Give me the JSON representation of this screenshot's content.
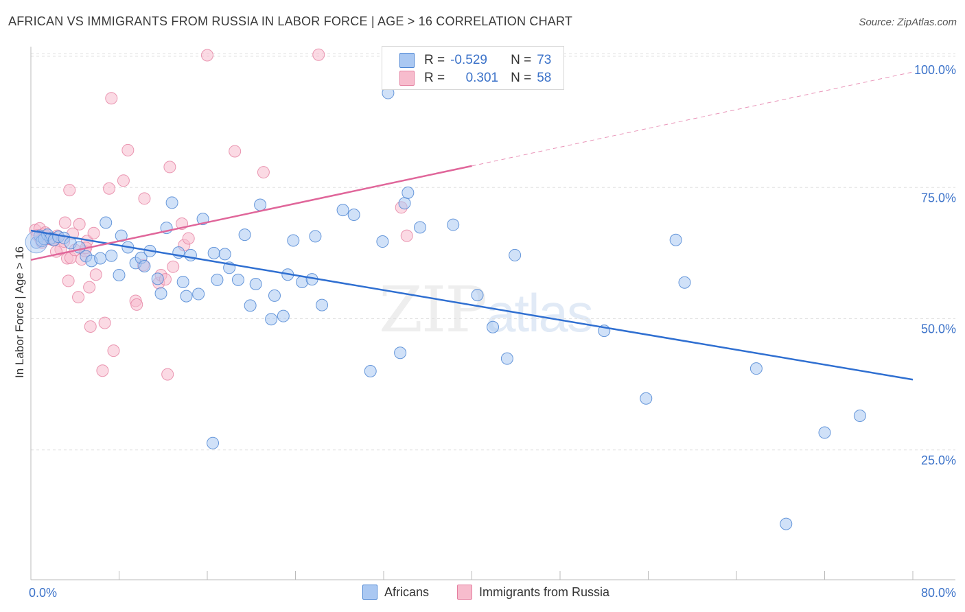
{
  "title": "AFRICAN VS IMMIGRANTS FROM RUSSIA IN LABOR FORCE | AGE > 16 CORRELATION CHART",
  "source": "Source: ZipAtlas.com",
  "watermark": {
    "main": "ZIP",
    "sub": "atlas"
  },
  "colors": {
    "blue_fill": "#aac8f2",
    "blue_stroke": "#4d86d4",
    "blue_line": "#2f6fd1",
    "pink_fill": "#f7bccd",
    "pink_stroke": "#e57fa0",
    "pink_line": "#e0669a",
    "axis_text": "#3b72c9",
    "grid": "#e0e0e0"
  },
  "legend_top": {
    "rows": [
      {
        "r_label": "R =",
        "r_value": "-0.529",
        "n_label": "N =",
        "n_value": "73"
      },
      {
        "r_label": "R =",
        "r_value": "0.301",
        "n_label": "N =",
        "n_value": "58"
      }
    ]
  },
  "legend_bottom": [
    "Africans",
    "Immigrants from Russia"
  ],
  "chart_data": {
    "type": "scatter",
    "title": "AFRICAN VS IMMIGRANTS FROM RUSSIA IN LABOR FORCE | AGE > 16 CORRELATION CHART",
    "xlabel": "",
    "ylabel": "In Labor Force | Age > 16",
    "xlim": [
      0,
      80
    ],
    "ylim": [
      0,
      102
    ],
    "x_tick_labels": [
      "0.0%",
      "80.0%"
    ],
    "y_ticks": [
      25,
      50,
      75,
      100
    ],
    "y_tick_labels": [
      "25.0%",
      "50.0%",
      "75.0%",
      "100.0%"
    ],
    "grid": true,
    "legend_position": "top-center",
    "series": [
      {
        "name": "Africans",
        "r": -0.529,
        "n": 73,
        "trend": {
          "x": [
            0,
            80
          ],
          "y": [
            66.8,
            38.4
          ]
        },
        "points": [
          [
            0.5,
            64.5
          ],
          [
            0.8,
            65.8
          ],
          [
            1.0,
            64.8
          ],
          [
            1.2,
            65.2
          ],
          [
            1.5,
            66.0
          ],
          [
            1.8,
            65.3
          ],
          [
            2.1,
            65.0
          ],
          [
            2.5,
            65.6
          ],
          [
            3.0,
            65.4
          ],
          [
            3.6,
            64.4
          ],
          [
            4.4,
            63.6
          ],
          [
            5.0,
            61.9
          ],
          [
            5.5,
            61.0
          ],
          [
            6.3,
            61.5
          ],
          [
            6.8,
            68.3
          ],
          [
            7.3,
            62.0
          ],
          [
            8.0,
            58.3
          ],
          [
            8.2,
            65.8
          ],
          [
            8.8,
            63.6
          ],
          [
            9.5,
            60.6
          ],
          [
            10.0,
            61.6
          ],
          [
            10.3,
            60.0
          ],
          [
            10.8,
            62.9
          ],
          [
            11.5,
            57.6
          ],
          [
            11.8,
            54.8
          ],
          [
            12.3,
            67.3
          ],
          [
            12.8,
            72.1
          ],
          [
            13.4,
            62.6
          ],
          [
            13.8,
            57.0
          ],
          [
            14.1,
            54.3
          ],
          [
            14.5,
            62.1
          ],
          [
            15.2,
            54.7
          ],
          [
            15.6,
            69.0
          ],
          [
            16.6,
            62.5
          ],
          [
            16.9,
            57.4
          ],
          [
            17.6,
            62.3
          ],
          [
            18.0,
            59.7
          ],
          [
            18.8,
            57.4
          ],
          [
            19.4,
            66.0
          ],
          [
            19.9,
            52.5
          ],
          [
            20.4,
            56.6
          ],
          [
            20.8,
            71.7
          ],
          [
            21.8,
            49.9
          ],
          [
            22.1,
            54.4
          ],
          [
            22.9,
            50.5
          ],
          [
            23.3,
            58.4
          ],
          [
            23.8,
            64.9
          ],
          [
            24.6,
            57.0
          ],
          [
            25.5,
            57.5
          ],
          [
            25.8,
            65.7
          ],
          [
            26.4,
            52.6
          ],
          [
            28.3,
            70.7
          ],
          [
            29.3,
            69.8
          ],
          [
            30.8,
            40.0
          ],
          [
            31.9,
            64.7
          ],
          [
            32.4,
            93.0
          ],
          [
            33.5,
            43.5
          ],
          [
            33.9,
            72.0
          ],
          [
            34.2,
            74.0
          ],
          [
            35.3,
            67.4
          ],
          [
            38.3,
            67.9
          ],
          [
            40.5,
            54.5
          ],
          [
            41.9,
            48.4
          ],
          [
            43.2,
            42.4
          ],
          [
            43.9,
            62.1
          ],
          [
            52.0,
            47.7
          ],
          [
            55.8,
            34.8
          ],
          [
            58.5,
            65.0
          ],
          [
            59.3,
            56.9
          ],
          [
            65.8,
            40.5
          ],
          [
            68.5,
            10.9
          ],
          [
            72.0,
            28.3
          ],
          [
            75.2,
            31.5
          ],
          [
            16.5,
            26.3
          ]
        ]
      },
      {
        "name": "Immigrants from Russia",
        "r": 0.301,
        "n": 58,
        "trend": {
          "x": [
            0,
            40.0
          ],
          "y": [
            61.2,
            79.1
          ]
        },
        "trend_dashed": {
          "x": [
            40.0,
            80
          ],
          "y": [
            79.1,
            97.0
          ]
        },
        "points": [
          [
            0.4,
            66.9
          ],
          [
            0.6,
            65.9
          ],
          [
            0.8,
            67.2
          ],
          [
            1.0,
            64.5
          ],
          [
            1.2,
            66.1
          ],
          [
            1.4,
            65.7
          ],
          [
            1.7,
            65.2
          ],
          [
            2.0,
            65.0
          ],
          [
            2.4,
            65.8
          ],
          [
            2.7,
            63.2
          ],
          [
            3.0,
            64.7
          ],
          [
            3.1,
            68.3
          ],
          [
            3.3,
            61.5
          ],
          [
            3.6,
            61.6
          ],
          [
            3.4,
            57.2
          ],
          [
            3.5,
            74.5
          ],
          [
            3.8,
            66.2
          ],
          [
            4.0,
            63.1
          ],
          [
            4.3,
            54.1
          ],
          [
            4.4,
            68.0
          ],
          [
            4.6,
            61.3
          ],
          [
            4.9,
            62.9
          ],
          [
            5.1,
            64.8
          ],
          [
            5.3,
            56.0
          ],
          [
            5.4,
            48.5
          ],
          [
            5.7,
            66.3
          ],
          [
            5.9,
            58.4
          ],
          [
            6.5,
            40.1
          ],
          [
            6.7,
            49.2
          ],
          [
            7.1,
            74.8
          ],
          [
            7.5,
            43.9
          ],
          [
            8.4,
            76.3
          ],
          [
            8.8,
            82.1
          ],
          [
            9.5,
            53.4
          ],
          [
            9.6,
            52.7
          ],
          [
            10.2,
            60.2
          ],
          [
            10.3,
            72.9
          ],
          [
            11.6,
            56.8
          ],
          [
            11.8,
            58.3
          ],
          [
            12.2,
            57.5
          ],
          [
            12.4,
            39.4
          ],
          [
            12.6,
            78.9
          ],
          [
            12.9,
            59.9
          ],
          [
            13.7,
            68.1
          ],
          [
            13.9,
            64.0
          ],
          [
            14.3,
            65.3
          ],
          [
            16.0,
            100.2
          ],
          [
            18.5,
            81.9
          ],
          [
            21.1,
            77.9
          ],
          [
            26.1,
            100.3
          ],
          [
            33.6,
            71.2
          ],
          [
            34.1,
            65.8
          ],
          [
            7.3,
            92.0
          ],
          [
            2.0,
            65.3
          ],
          [
            1.3,
            66.4
          ],
          [
            0.9,
            65.0
          ],
          [
            2.3,
            62.8
          ],
          [
            5.0,
            63.5
          ]
        ]
      }
    ]
  }
}
